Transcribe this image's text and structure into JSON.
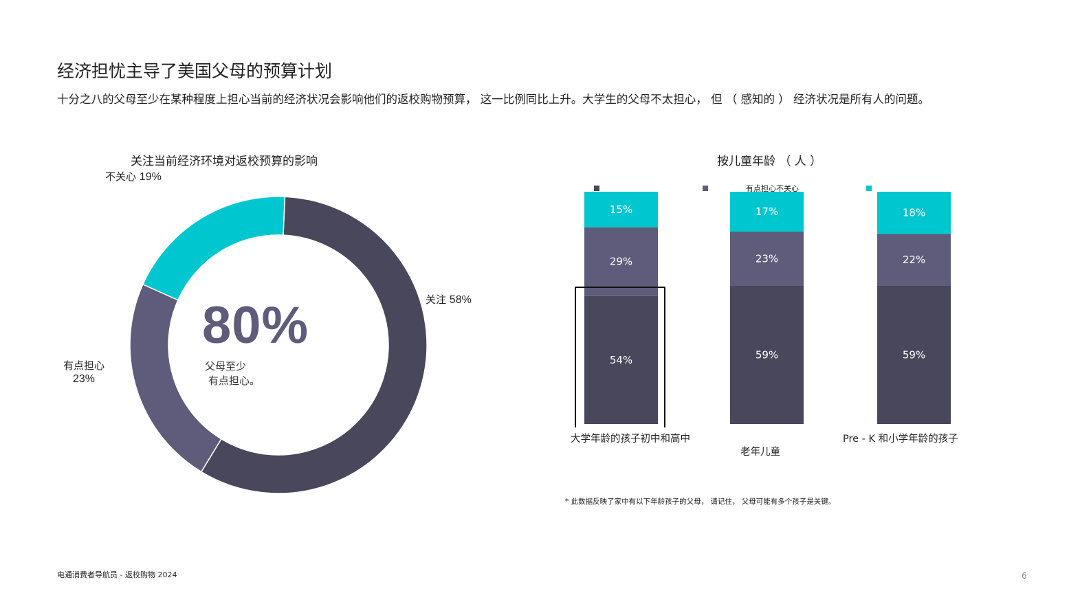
{
  "page": {
    "title": "经济担忧主导了美国父母的预算计划",
    "subtitle": "十分之八的父母至少在某种程度上担心当前的经济状况会影响他们的返校购物预算， 这一比例同比上升。大学生的父母不太担心， 但 （ 感知的 ） 经济状况是所有人的问题。",
    "footer": "电通消费者导航员 - 返校购物 2024",
    "page_number": "6",
    "footnote": "* 此数据反映了家中有以下年龄孩子的父母， 请记住， 父母可能有多个孩子是关键。"
  },
  "colors": {
    "concerned": "#48475b",
    "somewhat": "#5e5b7b",
    "not_concerned": "#00c7cf",
    "accent_text": "#5e5b7b"
  },
  "donut": {
    "title": "关注当前经济环境对返校预算的影响",
    "center_value": "80%",
    "center_text_line1": "父母至少",
    "center_text_line2": "有点担心。",
    "labels": {
      "concerned_name": "关注",
      "concerned_pct": "58%",
      "somewhat_name": "有点担心",
      "somewhat_pct": "23%",
      "not_name": "不关心",
      "not_pct": "19%"
    }
  },
  "bar": {
    "title": "按儿童年龄 （ 人 ）",
    "legend_text": "有点担心不关心",
    "cat1": "大学年龄的孩子初中和高中",
    "cat2": "老年儿童",
    "cat3": "Pre - K 和小学年龄的孩子"
  },
  "chart_data": [
    {
      "type": "pie",
      "title": "关注当前经济环境对返校预算的影响",
      "categories": [
        "关注",
        "有点担心",
        "不关心"
      ],
      "values": [
        58,
        23,
        19
      ],
      "unit": "%"
    },
    {
      "type": "bar",
      "stacked": true,
      "title": "按儿童年龄 （ 人 ）",
      "categories": [
        "大学年龄的孩子",
        "初中和高中",
        "Pre - K 和小学年龄的孩子"
      ],
      "series": [
        {
          "values": [
            54,
            59,
            59
          ]
        },
        {
          "name": "有点担心",
          "values": [
            29,
            23,
            22
          ]
        },
        {
          "name": "不关心",
          "values": [
            15,
            17,
            18
          ]
        }
      ],
      "ylim": [
        0,
        100
      ],
      "unit": "%"
    }
  ]
}
